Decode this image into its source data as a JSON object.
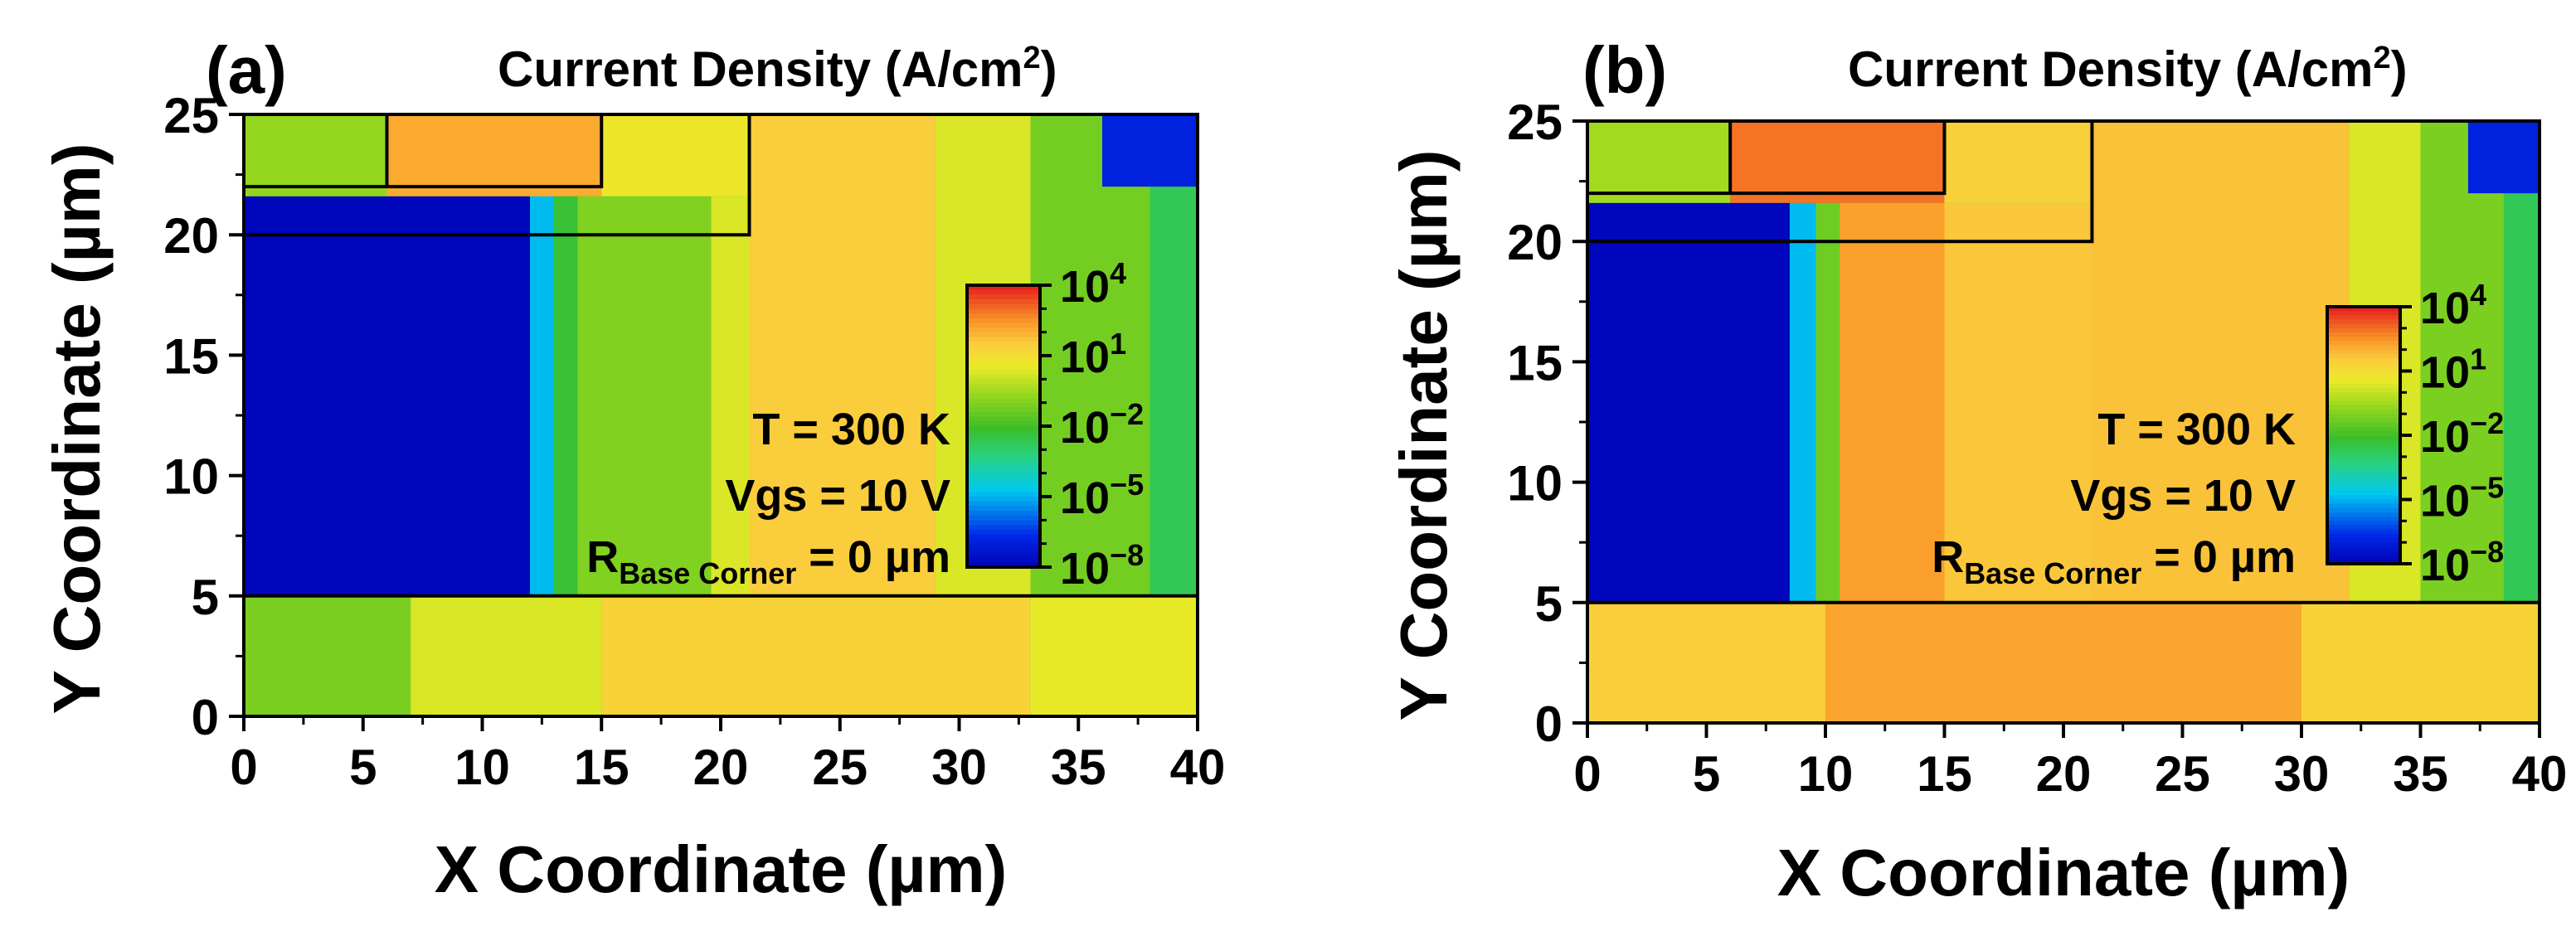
{
  "chart_data": [
    {
      "type": "heatmap",
      "panel_label": "(a)",
      "title": "Current Density (A/cm",
      "title_sup": "2",
      "title_close": ")",
      "xlabel": "X Coordinate (µm)",
      "ylabel": "Y Coordinate (µm)",
      "xlim": [
        0,
        40
      ],
      "ylim": [
        0,
        25
      ],
      "xticks": [
        0,
        5,
        10,
        15,
        20,
        25,
        30,
        35,
        40
      ],
      "yticks": [
        0,
        5,
        10,
        15,
        20,
        25
      ],
      "colorbar": {
        "base": "10",
        "exponents": [
          "4",
          "1",
          "−2",
          "−5",
          "−8"
        ],
        "min_exp": -8,
        "max_exp": 4
      },
      "annotations": {
        "temp": "T = 300 K",
        "vgs": "Vgs = 10 V",
        "r_main": "R",
        "r_sub": "Base Corner",
        "r_value": " = 0 µm"
      },
      "structure_lines": [
        {
          "x": [
            0,
            40
          ],
          "y": [
            5,
            5
          ]
        },
        {
          "x": [
            0,
            21.2,
            21.2
          ],
          "y": [
            20,
            20,
            25
          ]
        },
        {
          "x": [
            0,
            15,
            15
          ],
          "y": [
            22,
            22,
            25
          ]
        },
        {
          "x": [
            6,
            6
          ],
          "y": [
            22,
            25
          ]
        }
      ],
      "columns": [
        {
          "x0": 0,
          "x1": 12,
          "y0": 5,
          "y1": 21.6,
          "value_exp": -7.8
        },
        {
          "x0": 12,
          "x1": 13,
          "y0": 5,
          "y1": 21.6,
          "value_exp": -4.8
        },
        {
          "x0": 13,
          "x1": 14,
          "y0": 5,
          "y1": 21.6,
          "value_exp": -2.2
        },
        {
          "x0": 14,
          "x1": 19.6,
          "y0": 5,
          "y1": 21.6,
          "value_exp": -0.9
        },
        {
          "x0": 19.6,
          "x1": 21.2,
          "y0": 5,
          "y1": 21.6,
          "value_exp": 0.4
        },
        {
          "x0": 21.2,
          "x1": 29,
          "y0": 5,
          "y1": 25,
          "value_exp": 1.6
        },
        {
          "x0": 29,
          "x1": 33,
          "y0": 5,
          "y1": 25,
          "value_exp": 0.4
        },
        {
          "x0": 33,
          "x1": 38,
          "y0": 5,
          "y1": 25,
          "value_exp": -1.1
        },
        {
          "x0": 38,
          "x1": 40,
          "y0": 5,
          "y1": 25,
          "value_exp": -2.6
        },
        {
          "x0": 36,
          "x1": 40,
          "y0": 22,
          "y1": 25,
          "value_exp": -6.8
        },
        {
          "x0": 0,
          "x1": 6,
          "y0": 21.6,
          "y1": 25,
          "value_exp": -0.6
        },
        {
          "x0": 6,
          "x1": 15,
          "y0": 21.6,
          "y1": 25,
          "value_exp": 2.2
        },
        {
          "x0": 15,
          "x1": 21.2,
          "y0": 21.6,
          "y1": 25,
          "value_exp": 0.8
        },
        {
          "x0": 0,
          "x1": 7,
          "y0": 0,
          "y1": 5,
          "value_exp": -1.0
        },
        {
          "x0": 7,
          "x1": 15,
          "y0": 0,
          "y1": 5,
          "value_exp": 0.4
        },
        {
          "x0": 15,
          "x1": 33,
          "y0": 0,
          "y1": 5,
          "value_exp": 1.4
        },
        {
          "x0": 33,
          "x1": 40,
          "y0": 0,
          "y1": 5,
          "value_exp": 0.6
        }
      ]
    },
    {
      "type": "heatmap",
      "panel_label": "(b)",
      "title": "Current Density (A/cm",
      "title_sup": "2",
      "title_close": ")",
      "xlabel": "X Coordinate (µm)",
      "ylabel": "Y Coordinate (µm)",
      "xlim": [
        0,
        40
      ],
      "ylim": [
        0,
        25
      ],
      "xticks": [
        0,
        5,
        10,
        15,
        20,
        25,
        30,
        35,
        40
      ],
      "yticks": [
        0,
        5,
        10,
        15,
        20,
        25
      ],
      "colorbar": {
        "base": "10",
        "exponents": [
          "4",
          "1",
          "−2",
          "−5",
          "−8"
        ],
        "min_exp": -8,
        "max_exp": 4
      },
      "annotations": {
        "temp": "T = 300 K",
        "vgs": "Vgs = 10 V",
        "r_main": "R",
        "r_sub": "Base Corner",
        "r_value": " = 0 µm"
      },
      "structure_lines": [
        {
          "x": [
            0,
            40
          ],
          "y": [
            5,
            5
          ]
        },
        {
          "x": [
            0,
            21.2,
            21.2
          ],
          "y": [
            20,
            20,
            25
          ]
        },
        {
          "x": [
            0,
            15,
            15
          ],
          "y": [
            22,
            22,
            25
          ]
        },
        {
          "x": [
            6,
            6
          ],
          "y": [
            22,
            25
          ]
        }
      ],
      "columns": [
        {
          "x0": 0,
          "x1": 8.5,
          "y0": 5,
          "y1": 21.6,
          "value_exp": -7.8
        },
        {
          "x0": 8.5,
          "x1": 9.6,
          "y0": 5,
          "y1": 21.6,
          "value_exp": -4.8
        },
        {
          "x0": 9.6,
          "x1": 10.6,
          "y0": 5,
          "y1": 21.6,
          "value_exp": -1.2
        },
        {
          "x0": 10.6,
          "x1": 15,
          "y0": 5,
          "y1": 21.6,
          "value_exp": 2.4
        },
        {
          "x0": 15,
          "x1": 21.2,
          "y0": 5,
          "y1": 21.6,
          "value_exp": 1.7
        },
        {
          "x0": 21.2,
          "x1": 32,
          "y0": 5,
          "y1": 25,
          "value_exp": 1.8
        },
        {
          "x0": 32,
          "x1": 35,
          "y0": 5,
          "y1": 25,
          "value_exp": 0.4
        },
        {
          "x0": 35,
          "x1": 38.5,
          "y0": 5,
          "y1": 25,
          "value_exp": -1.0
        },
        {
          "x0": 38.5,
          "x1": 40,
          "y0": 5,
          "y1": 25,
          "value_exp": -2.6
        },
        {
          "x0": 37,
          "x1": 40,
          "y0": 22,
          "y1": 25,
          "value_exp": -6.8
        },
        {
          "x0": 0,
          "x1": 6,
          "y0": 21.6,
          "y1": 25,
          "value_exp": -0.4
        },
        {
          "x0": 6,
          "x1": 15,
          "y0": 21.6,
          "y1": 25,
          "value_exp": 3.0
        },
        {
          "x0": 15,
          "x1": 21.2,
          "y0": 21.6,
          "y1": 25,
          "value_exp": 1.5
        },
        {
          "x0": 0,
          "x1": 10,
          "y0": 0,
          "y1": 5,
          "value_exp": 1.6
        },
        {
          "x0": 10,
          "x1": 30,
          "y0": 0,
          "y1": 5,
          "value_exp": 2.3
        },
        {
          "x0": 30,
          "x1": 40,
          "y0": 0,
          "y1": 5,
          "value_exp": 1.4
        }
      ]
    }
  ]
}
